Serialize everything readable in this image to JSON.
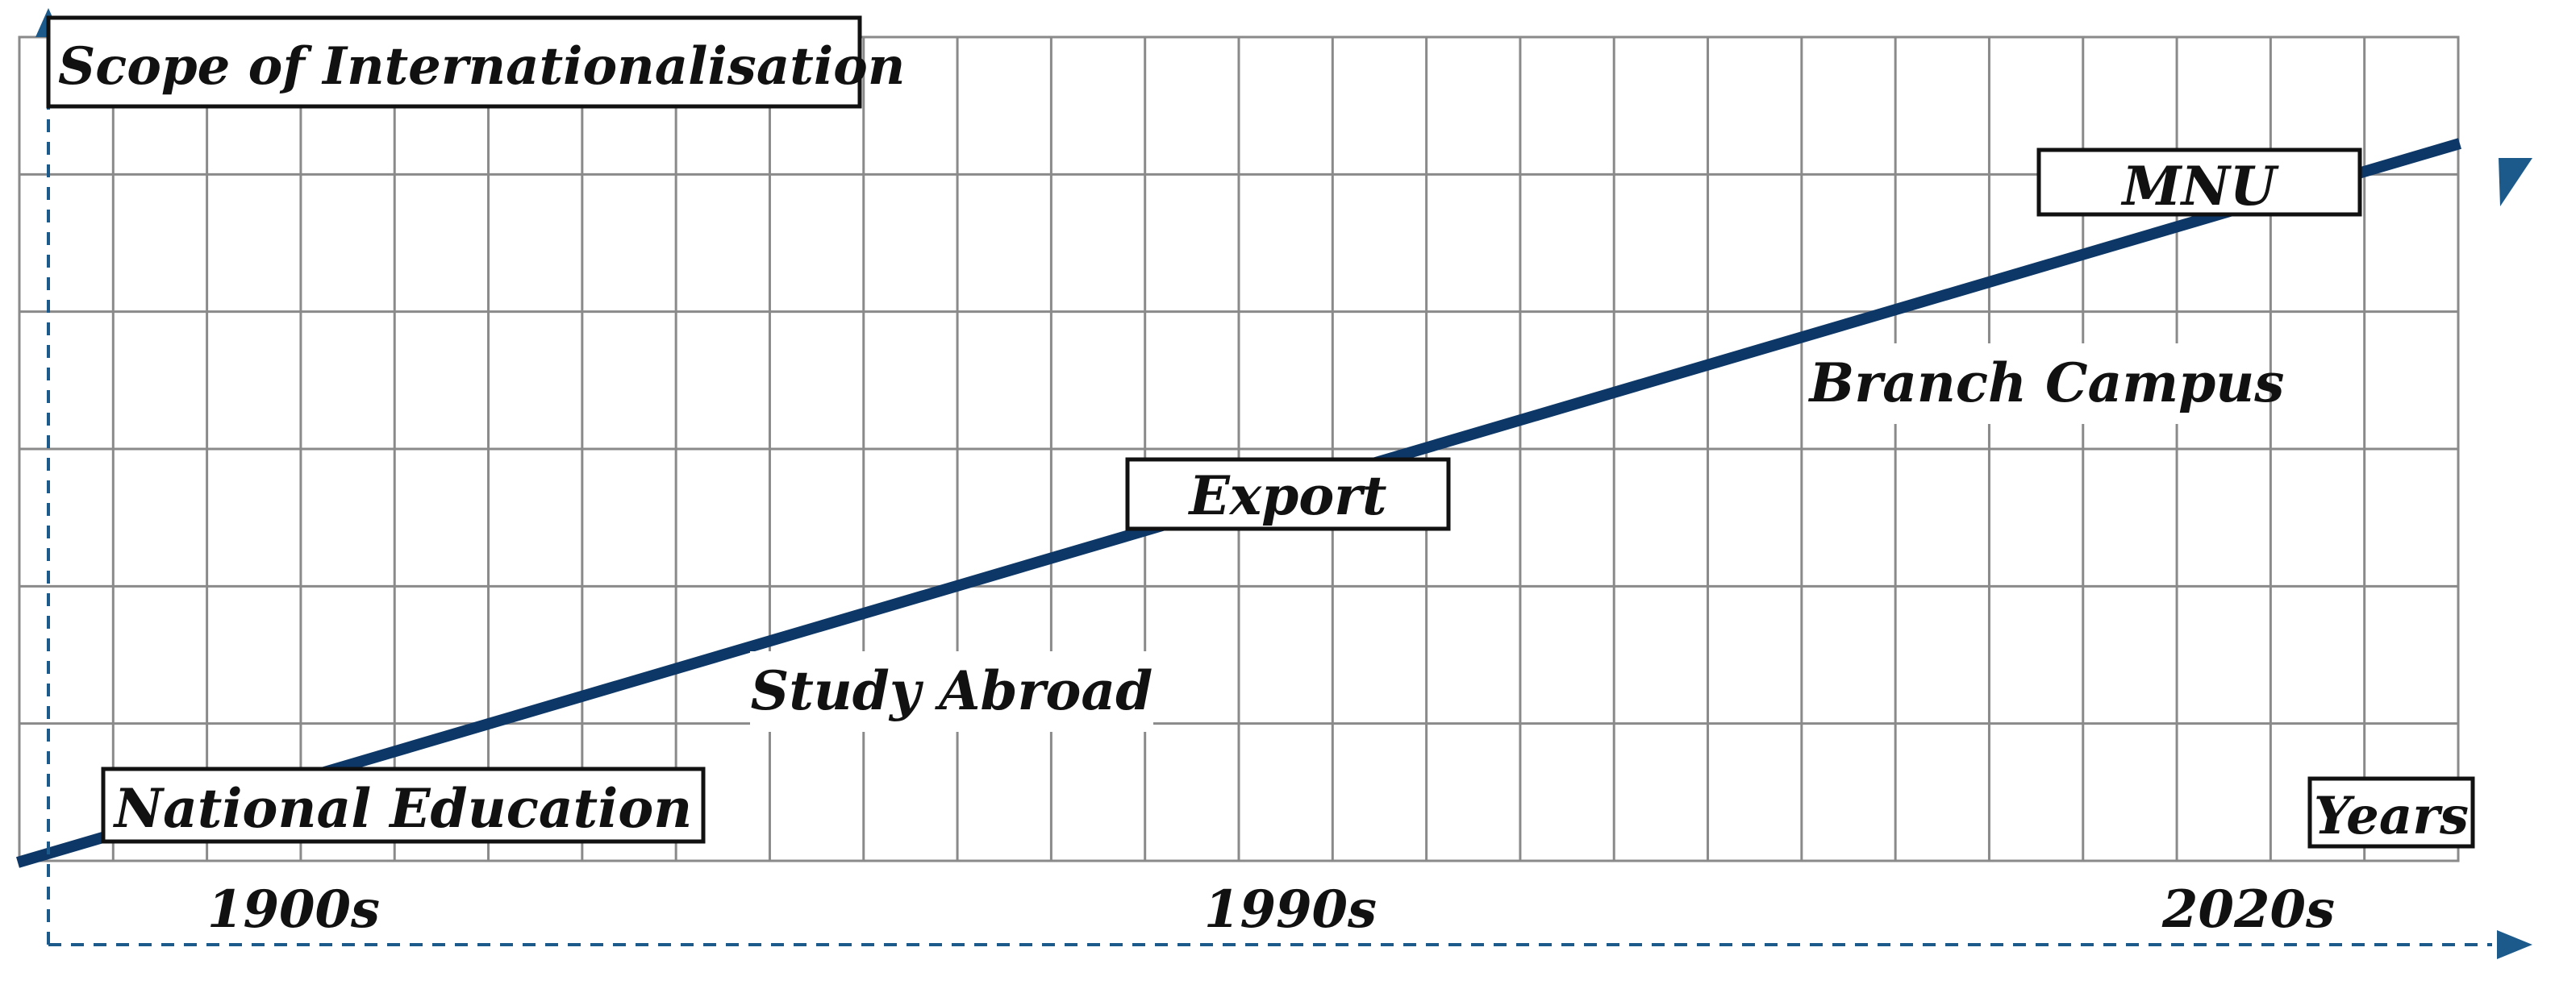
{
  "title": "Scope of Internationalisation",
  "x_axis_label": "Years",
  "ticks": [
    "1900s",
    "1990s",
    "2020s"
  ],
  "stages": [
    {
      "label": "National Education",
      "boxed": true
    },
    {
      "label": "Study Abroad",
      "boxed": false
    },
    {
      "label": "Export",
      "boxed": true
    },
    {
      "label": "Branch Campus",
      "boxed": false
    },
    {
      "label": "MNU",
      "boxed": true
    }
  ],
  "colors": {
    "trend": "#0d3766",
    "axis": "#1d5a8c",
    "grid": "#8a8a8a",
    "text": "#111111",
    "box_border": "#111111"
  }
}
